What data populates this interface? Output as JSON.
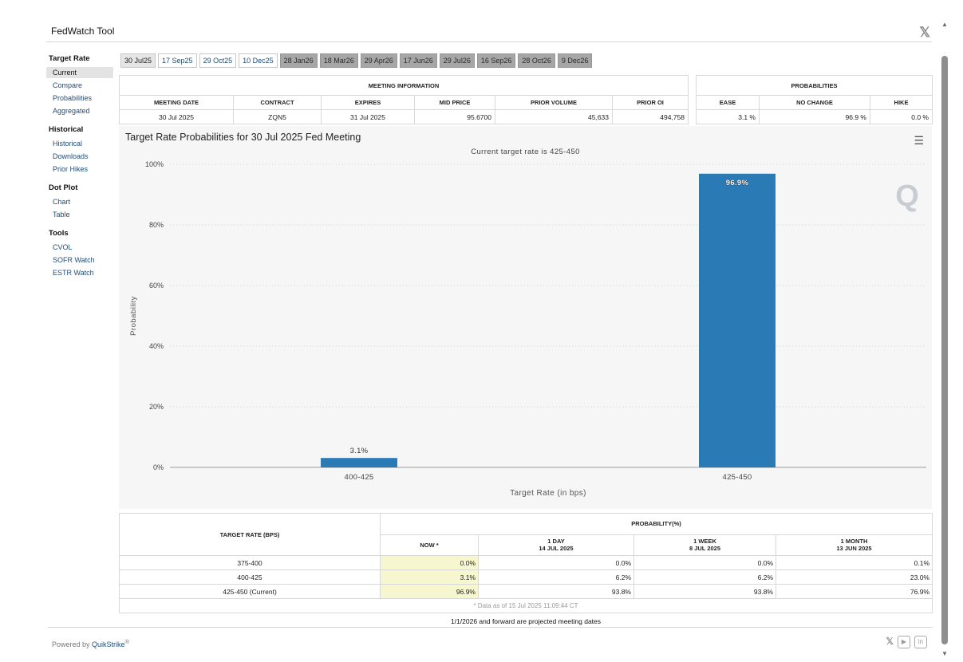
{
  "app": {
    "title": "FedWatch Tool"
  },
  "sidebar": {
    "sections": [
      {
        "title": "Target Rate",
        "items": [
          "Current",
          "Compare",
          "Probabilities",
          "Aggregated"
        ],
        "active": 0
      },
      {
        "title": "Historical",
        "items": [
          "Historical",
          "Downloads",
          "Prior Hikes"
        ]
      },
      {
        "title": "Dot Plot",
        "items": [
          "Chart",
          "Table"
        ]
      },
      {
        "title": "Tools",
        "items": [
          "CVOL",
          "SOFR Watch",
          "ESTR Watch"
        ]
      }
    ]
  },
  "meeting_tabs": {
    "active": 0,
    "items": [
      {
        "label": "30 Jul25",
        "projected": false
      },
      {
        "label": "17 Sep25",
        "projected": false
      },
      {
        "label": "29 Oct25",
        "projected": false
      },
      {
        "label": "10 Dec25",
        "projected": false
      },
      {
        "label": "28 Jan26",
        "projected": true
      },
      {
        "label": "18 Mar26",
        "projected": true
      },
      {
        "label": "29 Apr26",
        "projected": true
      },
      {
        "label": "17 Jun26",
        "projected": true
      },
      {
        "label": "29 Jul26",
        "projected": true
      },
      {
        "label": "16 Sep26",
        "projected": true
      },
      {
        "label": "28 Oct26",
        "projected": true
      },
      {
        "label": "9 Dec26",
        "projected": true
      }
    ]
  },
  "meeting_info": {
    "heading": "MEETING INFORMATION",
    "columns": [
      "MEETING DATE",
      "CONTRACT",
      "EXPIRES",
      "MID PRICE",
      "PRIOR VOLUME",
      "PRIOR OI"
    ],
    "row": [
      "30 Jul 2025",
      "ZQN5",
      "31 Jul 2025",
      "95.6700",
      "45,633",
      "494,758"
    ]
  },
  "probabilities": {
    "heading": "PROBABILITIES",
    "columns": [
      "EASE",
      "NO CHANGE",
      "HIKE"
    ],
    "row": [
      "3.1 %",
      "96.9 %",
      "0.0 %"
    ]
  },
  "chart_data": {
    "type": "bar",
    "title": "Target Rate Probabilities for 30 Jul 2025 Fed Meeting",
    "subtitle": "Current target rate is 425-450",
    "xlabel": "Target Rate (in bps)",
    "ylabel": "Probability",
    "categories": [
      "400-425",
      "425-450"
    ],
    "values": [
      3.1,
      96.9
    ],
    "data_labels": [
      "3.1%",
      "96.9%"
    ],
    "ylim": [
      0,
      100
    ],
    "yticks": [
      0,
      20,
      40,
      60,
      80,
      100
    ],
    "ytick_labels": [
      "0%",
      "20%",
      "40%",
      "60%",
      "80%",
      "100%"
    ],
    "grid": true,
    "bar_color": "#2a7ab5",
    "watermark": "Q"
  },
  "prob_table": {
    "col_target": "TARGET RATE (BPS)",
    "col_group": "PROBABILITY(%)",
    "periods": [
      {
        "label": "NOW *",
        "date": ""
      },
      {
        "label": "1 DAY",
        "date": "14 JUL 2025"
      },
      {
        "label": "1 WEEK",
        "date": "8 JUL 2025"
      },
      {
        "label": "1 MONTH",
        "date": "13 JUN 2025"
      }
    ],
    "rows": [
      {
        "rate": "375-400",
        "values": [
          "0.0%",
          "0.0%",
          "0.0%",
          "0.1%"
        ]
      },
      {
        "rate": "400-425",
        "values": [
          "3.1%",
          "6.2%",
          "6.2%",
          "23.0%"
        ]
      },
      {
        "rate": "425-450 (Current)",
        "values": [
          "96.9%",
          "93.8%",
          "93.8%",
          "76.9%"
        ]
      }
    ],
    "note": "* Data as of 15 Jul 2025 11:09:44 CT"
  },
  "projection_note": "1/1/2026 and forward are projected meeting dates",
  "footer": {
    "powered_by": "Powered by ",
    "brand": "QuikStrike",
    "reg": "®"
  },
  "icons": {
    "x_top": "x-logo-icon",
    "chart_menu": "hamburger-menu-icon"
  }
}
